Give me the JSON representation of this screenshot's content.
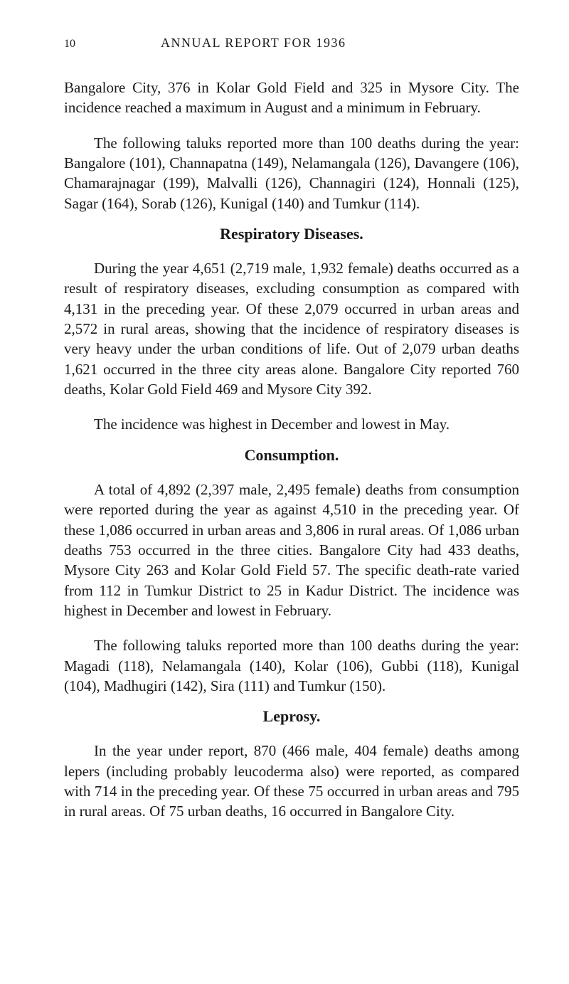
{
  "header": {
    "pageNumber": "10",
    "title": "ANNUAL REPORT FOR 1936"
  },
  "sections": {
    "intro": {
      "p1": "Bangalore City, 376 in Kolar Gold Field and 325 in Mysore City. The incidence reached a maximum in August and a minimum in February.",
      "p2": "The following taluks reported more than 100 deaths during the year: Bangalore (101), Channapatna (149), Nelamangala (126), Davangere (106), Chamarajnagar (199), Malvalli (126), Channagiri (124), Honnali (125), Sagar (164), Sorab (126), Kunigal (140) and Tumkur (114)."
    },
    "respiratory": {
      "heading": "Respiratory Diseases.",
      "p1": "During the year 4,651 (2,719 male, 1,932 female) deaths occurred as a result of respiratory diseases, excluding consumption as compared with 4,131 in the preceding year. Of these 2,079 occurred in urban areas and 2,572 in rural areas, showing that the incidence of respiratory diseases is very heavy under the urban conditions of life. Out of 2,079 urban deaths 1,621 occurred in the three city areas alone. Bangalore City reported 760 deaths, Kolar Gold Field 469 and Mysore City 392.",
      "p2": "The incidence was highest in December and lowest in May."
    },
    "consumption": {
      "heading": "Consumption.",
      "p1": "A total of 4,892 (2,397 male, 2,495 female) deaths from consumption were reported during the year as against 4,510 in the preceding year. Of these 1,086 occurred in urban areas and 3,806 in rural areas. Of 1,086 urban deaths 753 occurred in the three cities. Bangalore City had 433 deaths, Mysore City 263 and Kolar Gold Field 57. The specific death-rate varied from 112 in Tumkur District to 25 in Kadur District. The incidence was highest in December and lowest in February.",
      "p2": "The following taluks reported more than 100 deaths during the year: Magadi (118), Nelamangala (140), Kolar (106), Gubbi (118), Kunigal (104), Madhugiri (142), Sira (111) and Tumkur (150)."
    },
    "leprosy": {
      "heading": "Leprosy.",
      "p1": "In the year under report, 870 (466 male, 404 female) deaths among lepers (including probably leucoderma also) were reported, as compared with 714 in the preceding year. Of these 75 occurred in urban areas and 795 in rural areas. Of 75 urban deaths, 16 occurred in Bangalore City."
    }
  }
}
